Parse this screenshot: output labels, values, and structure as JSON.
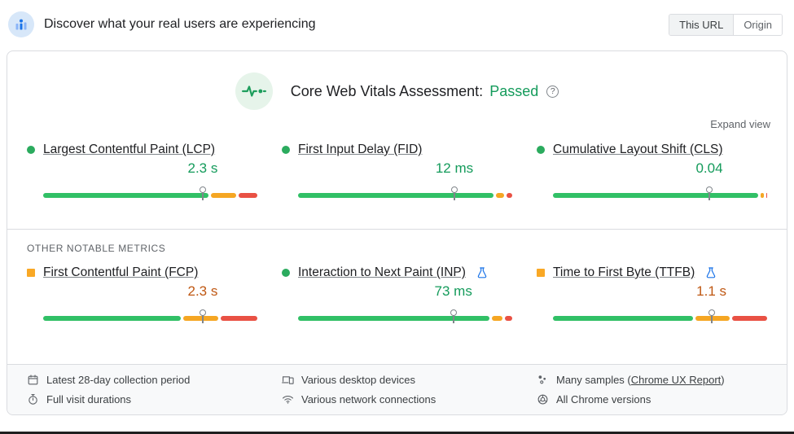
{
  "header": {
    "title": "Discover what your real users are experiencing",
    "toggle": {
      "options": [
        "This URL",
        "Origin"
      ],
      "selected": "This URL"
    }
  },
  "assessment": {
    "label": "Core Web Vitals Assessment:",
    "status": "Passed",
    "help_icon_glyph": "?",
    "expand_label": "Expand view"
  },
  "sections": {
    "other_metrics_label": "OTHER NOTABLE METRICS"
  },
  "metrics": [
    {
      "id": "lcp",
      "name": "Largest Contentful Paint (LCP)",
      "value": "2.3 s",
      "rating": "good",
      "indicator": "circle",
      "experimental": false,
      "marker_percent": 74.5,
      "distribution": {
        "good": 78,
        "needs_improvement": 12.5,
        "poor": 9.5
      }
    },
    {
      "id": "fid",
      "name": "First Input Delay (FID)",
      "value": "12 ms",
      "rating": "good",
      "indicator": "circle",
      "experimental": false,
      "marker_percent": 73,
      "distribution": {
        "good": 92,
        "needs_improvement": 4.5,
        "poor": 3.5
      }
    },
    {
      "id": "cls",
      "name": "Cumulative Layout Shift (CLS)",
      "value": "0.04",
      "rating": "good",
      "indicator": "circle",
      "experimental": false,
      "marker_percent": 73,
      "distribution": {
        "good": 96.5,
        "needs_improvement": 2.5,
        "poor": 1
      }
    },
    {
      "id": "fcp",
      "name": "First Contentful Paint (FCP)",
      "value": "2.3 s",
      "rating": "average",
      "indicator": "square",
      "experimental": false,
      "marker_percent": 74.5,
      "distribution": {
        "good": 65,
        "needs_improvement": 17,
        "poor": 18
      }
    },
    {
      "id": "inp",
      "name": "Interaction to Next Paint (INP)",
      "value": "73 ms",
      "rating": "good",
      "indicator": "circle",
      "experimental": true,
      "marker_percent": 72.5,
      "distribution": {
        "good": 90,
        "needs_improvement": 6,
        "poor": 4
      }
    },
    {
      "id": "ttfb",
      "name": "Time to First Byte (TTFB)",
      "value": "1.1 s",
      "rating": "average",
      "indicator": "square",
      "experimental": true,
      "marker_percent": 74,
      "distribution": {
        "good": 66,
        "needs_improvement": 17,
        "poor": 17
      }
    }
  ],
  "footer": {
    "items": [
      {
        "icon": "calendar-icon",
        "text": "Latest 28-day collection period"
      },
      {
        "icon": "stopwatch-icon",
        "text": "Full visit durations"
      },
      {
        "icon": "devices-icon",
        "text": "Various desktop devices"
      },
      {
        "icon": "network-icon",
        "text": "Various network connections"
      },
      {
        "icon": "samples-icon",
        "text_prefix": "Many samples (",
        "link_text": "Chrome UX Report",
        "text_suffix": ")"
      },
      {
        "icon": "chrome-icon",
        "text": "All Chrome versions"
      }
    ]
  },
  "colors": {
    "good_text": "#149b5b",
    "average_text": "#bf5712",
    "bar_good": "#31c066",
    "bar_needs_improvement": "#f5a623",
    "bar_poor": "#e95144",
    "link_blue": "#1a73e8",
    "border": "#dadce0"
  },
  "chart_data": [
    {
      "type": "bar",
      "metric": "LCP",
      "p75": "2.3 s",
      "series_percent": {
        "good": 78,
        "needs_improvement": 12.5,
        "poor": 9.5
      }
    },
    {
      "type": "bar",
      "metric": "FID",
      "p75": "12 ms",
      "series_percent": {
        "good": 92,
        "needs_improvement": 4.5,
        "poor": 3.5
      }
    },
    {
      "type": "bar",
      "metric": "CLS",
      "p75": "0.04",
      "series_percent": {
        "good": 96.5,
        "needs_improvement": 2.5,
        "poor": 1
      }
    },
    {
      "type": "bar",
      "metric": "FCP",
      "p75": "2.3 s",
      "series_percent": {
        "good": 65,
        "needs_improvement": 17,
        "poor": 18
      }
    },
    {
      "type": "bar",
      "metric": "INP",
      "p75": "73 ms",
      "series_percent": {
        "good": 90,
        "needs_improvement": 6,
        "poor": 4
      }
    },
    {
      "type": "bar",
      "metric": "TTFB",
      "p75": "1.1 s",
      "series_percent": {
        "good": 66,
        "needs_improvement": 17,
        "poor": 17
      }
    }
  ]
}
